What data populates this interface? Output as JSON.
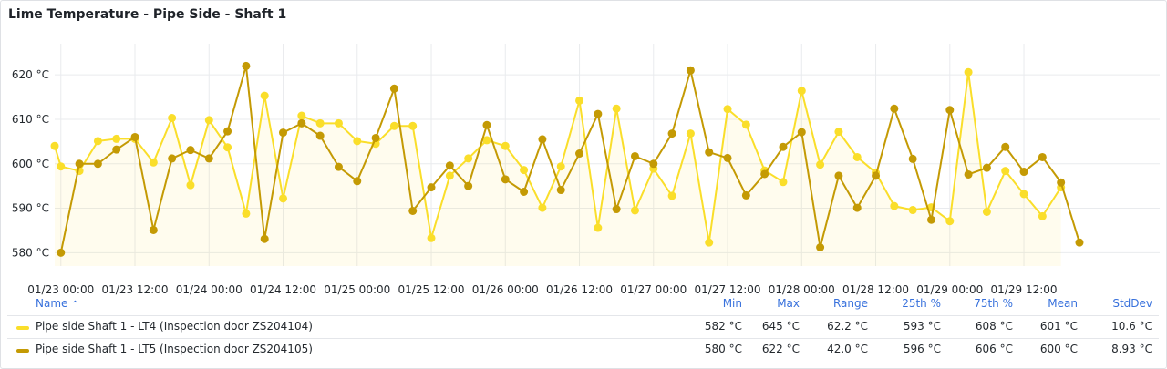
{
  "panel": {
    "title": "Lime Temperature - Pipe Side - Shaft 1"
  },
  "legend": {
    "headers": {
      "name": "Name",
      "sort_icon": "⌃",
      "min": "Min",
      "max": "Max",
      "range": "Range",
      "p25": "25th %",
      "p75": "75th %",
      "mean": "Mean",
      "stddev": "StdDev"
    },
    "rows": [
      {
        "name": "Pipe side Shaft 1 - LT4 (Inspection door ZS204104)",
        "color": "#fade2a",
        "min": "582 °C",
        "max": "645 °C",
        "range": "62.2 °C",
        "p25": "593 °C",
        "p75": "608 °C",
        "mean": "601 °C",
        "stddev": "10.6 °C"
      },
      {
        "name": "Pipe side Shaft 1 - LT5 (Inspection door ZS204105)",
        "color": "#c49a04",
        "min": "580 °C",
        "max": "622 °C",
        "range": "42.0 °C",
        "p25": "596 °C",
        "p75": "606 °C",
        "mean": "600 °C",
        "stddev": "8.93 °C"
      }
    ]
  },
  "chart_data": {
    "type": "line",
    "title": "Lime Temperature - Pipe Side - Shaft 1",
    "x_type": "time",
    "x_range": [
      "01/22 23:00",
      "01/30 10:00"
    ],
    "x_ticks": [
      "01/23 00:00",
      "01/23 12:00",
      "01/24 00:00",
      "01/24 12:00",
      "01/25 00:00",
      "01/25 12:00",
      "01/26 00:00",
      "01/26 12:00",
      "01/27 00:00",
      "01/27 12:00",
      "01/28 00:00",
      "01/28 12:00",
      "01/29 00:00",
      "01/29 12:00"
    ],
    "ylim": [
      577,
      627
    ],
    "y_ticks": [
      "580 °C",
      "590 °C",
      "600 °C",
      "610 °C",
      "620 °C"
    ],
    "y_tick_values": [
      580,
      590,
      600,
      610,
      620
    ],
    "grid": true,
    "series": [
      {
        "name": "Pipe side Shaft 1 - LT4 (Inspection door ZS204104)",
        "color": "#fade2a",
        "fill": true,
        "x": [
          "01/22 23:00",
          "01/23 00:00",
          "01/23 03:00",
          "01/23 06:00",
          "01/23 09:00",
          "01/23 12:00",
          "01/23 15:00",
          "01/23 18:00",
          "01/23 21:00",
          "01/24 00:00",
          "01/24 03:00",
          "01/24 06:00",
          "01/24 09:00",
          "01/24 12:00",
          "01/24 15:00",
          "01/24 18:00",
          "01/24 21:00",
          "01/25 00:00",
          "01/25 03:00",
          "01/25 06:00",
          "01/25 09:00",
          "01/25 12:00",
          "01/25 15:00",
          "01/25 18:00",
          "01/25 21:00",
          "01/26 00:00",
          "01/26 03:00",
          "01/26 06:00",
          "01/26 09:00",
          "01/26 12:00",
          "01/26 15:00",
          "01/26 18:00",
          "01/26 21:00",
          "01/27 00:00",
          "01/27 03:00",
          "01/27 06:00",
          "01/27 09:00",
          "01/27 12:00",
          "01/27 15:00",
          "01/27 18:00",
          "01/27 21:00",
          "01/28 00:00",
          "01/28 03:00",
          "01/28 06:00",
          "01/28 09:00",
          "01/28 12:00",
          "01/28 15:00",
          "01/28 18:00",
          "01/28 21:00",
          "01/29 00:00",
          "01/29 03:00",
          "01/29 06:00",
          "01/29 09:00",
          "01/29 12:00",
          "01/29 15:00",
          "01/29 18:00",
          "01/29 21:00",
          "01/30 00:00"
        ],
        "y": [
          604,
          599.4,
          598.4,
          605.1,
          605.6,
          605.6,
          600.3,
          610.3,
          595.2,
          609.8,
          603.7,
          588.8,
          615.3,
          592.2,
          610.8,
          609.1,
          609.1,
          605.1,
          604.5,
          608.5,
          608.5,
          583.3,
          597.3,
          601.2,
          605.3,
          604,
          598.6,
          590.1,
          599.4,
          614.2,
          585.6,
          612.4,
          589.5,
          598.9,
          592.8,
          606.8,
          582.3,
          612.3,
          608.8,
          598.5,
          595.9,
          616.4,
          599.8,
          607.2,
          601.5,
          598,
          590.5,
          589.6,
          590.2,
          587.1,
          620.6,
          589.2,
          598.4,
          593.2,
          588.2,
          594.7,
          null,
          null
        ]
      },
      {
        "name": "Pipe side Shaft 1 - LT5 (Inspection door ZS204105)",
        "color": "#c49a04",
        "fill": false,
        "x": [
          "01/23 00:00",
          "01/23 03:00",
          "01/23 06:00",
          "01/23 09:00",
          "01/23 12:00",
          "01/23 15:00",
          "01/23 18:00",
          "01/23 21:00",
          "01/24 00:00",
          "01/24 03:00",
          "01/24 06:00",
          "01/24 09:00",
          "01/24 12:00",
          "01/24 15:00",
          "01/24 18:00",
          "01/24 21:00",
          "01/25 00:00",
          "01/25 03:00",
          "01/25 06:00",
          "01/25 09:00",
          "01/25 12:00",
          "01/25 15:00",
          "01/25 18:00",
          "01/25 21:00",
          "01/26 00:00",
          "01/26 03:00",
          "01/26 06:00",
          "01/26 09:00",
          "01/26 12:00",
          "01/26 15:00",
          "01/26 18:00",
          "01/26 21:00",
          "01/27 00:00",
          "01/27 03:00",
          "01/27 06:00",
          "01/27 09:00",
          "01/27 12:00",
          "01/27 15:00",
          "01/27 18:00",
          "01/27 21:00",
          "01/28 00:00",
          "01/28 03:00",
          "01/28 06:00",
          "01/28 09:00",
          "01/28 12:00",
          "01/28 15:00",
          "01/28 18:00",
          "01/28 21:00",
          "01/29 00:00",
          "01/29 03:00",
          "01/29 06:00",
          "01/29 09:00",
          "01/29 12:00",
          "01/29 15:00",
          "01/29 18:00",
          "01/29 21:00"
        ],
        "y": [
          580,
          600,
          600,
          603.2,
          606,
          585.1,
          601.2,
          603.1,
          601.2,
          607.3,
          622,
          583.1,
          607,
          609.1,
          606.3,
          599.3,
          596.1,
          605.8,
          616.9,
          589.4,
          594.7,
          599.6,
          595,
          608.7,
          596.5,
          593.7,
          605.5,
          594.1,
          602.3,
          611.2,
          589.8,
          601.7,
          600,
          606.8,
          621,
          602.6,
          601.3,
          592.9,
          597.7,
          603.8,
          607.1,
          581.2,
          597.3,
          590.1,
          597.3,
          612.4,
          601.1,
          587.4,
          612.1,
          597.6,
          599.1,
          603.8,
          598.2,
          601.5,
          595.8,
          582.3
        ]
      }
    ]
  }
}
